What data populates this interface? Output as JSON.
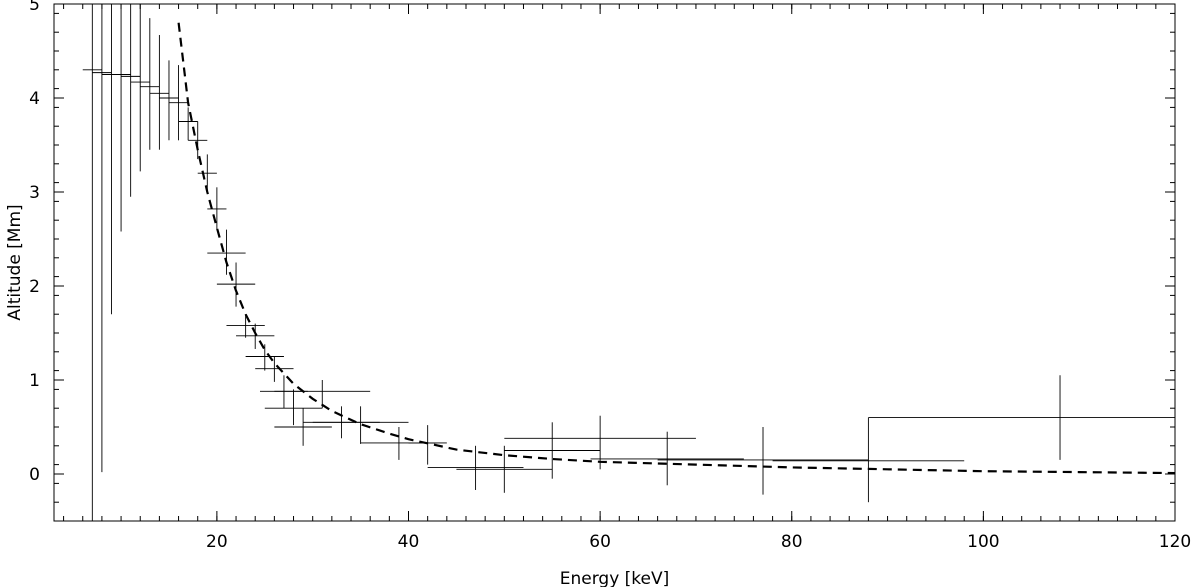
{
  "chart_data": {
    "type": "scatter",
    "title": "",
    "xlabel": "Energy [keV]",
    "ylabel": "Altitude [Mm]",
    "xlim": [
      3,
      120
    ],
    "ylim": [
      -0.5,
      5
    ],
    "xticks": [
      20,
      40,
      60,
      80,
      100,
      120
    ],
    "yticks": [
      0,
      1,
      2,
      3,
      4,
      5
    ],
    "x_minor_step": 2,
    "y_minor_step": 0.2,
    "grid": false,
    "legend": "none",
    "series": [
      {
        "style": "error-bars",
        "color": "#000000",
        "points": [
          {
            "x": 7.0,
            "xerr": 1.0,
            "y": 4.3,
            "ylo": -0.5,
            "yhi": 5.0
          },
          {
            "x": 8.0,
            "xerr": 1.0,
            "y": 4.27,
            "ylo": 0.02,
            "yhi": 5.0
          },
          {
            "x": 9.0,
            "xerr": 1.0,
            "y": 4.25,
            "ylo": 1.7,
            "yhi": 5.0
          },
          {
            "x": 10.0,
            "xerr": 1.0,
            "y": 4.25,
            "ylo": 2.58,
            "yhi": 5.0
          },
          {
            "x": 11.0,
            "xerr": 1.0,
            "y": 4.23,
            "ylo": 2.95,
            "yhi": 5.0
          },
          {
            "x": 12.0,
            "xerr": 1.0,
            "y": 4.17,
            "ylo": 3.22,
            "yhi": 5.0
          },
          {
            "x": 13.0,
            "xerr": 1.0,
            "y": 4.12,
            "ylo": 3.45,
            "yhi": 4.85
          },
          {
            "x": 14.0,
            "xerr": 1.0,
            "y": 4.05,
            "ylo": 3.45,
            "yhi": 4.67
          },
          {
            "x": 15.0,
            "xerr": 1.0,
            "y": 4.0,
            "ylo": 3.55,
            "yhi": 4.4
          },
          {
            "x": 16.0,
            "xerr": 1.0,
            "y": 3.95,
            "ylo": 3.55,
            "yhi": 4.35
          },
          {
            "x": 17.0,
            "xerr": 1.0,
            "y": 3.75,
            "ylo": 3.55,
            "yhi": 3.9
          },
          {
            "x": 18.0,
            "xerr": 1.0,
            "y": 3.55,
            "ylo": 3.35,
            "yhi": 3.75
          },
          {
            "x": 19.0,
            "xerr": 1.0,
            "y": 3.2,
            "ylo": 3.0,
            "yhi": 3.4
          },
          {
            "x": 20.0,
            "xerr": 1.0,
            "y": 2.82,
            "ylo": 2.6,
            "yhi": 3.05
          },
          {
            "x": 21.0,
            "xerr": 2.0,
            "y": 2.35,
            "ylo": 2.12,
            "yhi": 2.6
          },
          {
            "x": 22.0,
            "xerr": 2.0,
            "y": 2.02,
            "ylo": 1.78,
            "yhi": 2.25
          },
          {
            "x": 23.0,
            "xerr": 2.0,
            "y": 1.58,
            "ylo": 1.45,
            "yhi": 1.7
          },
          {
            "x": 24.0,
            "xerr": 2.0,
            "y": 1.47,
            "ylo": 1.33,
            "yhi": 1.6
          },
          {
            "x": 25.0,
            "xerr": 2.0,
            "y": 1.25,
            "ylo": 1.1,
            "yhi": 1.38
          },
          {
            "x": 26.0,
            "xerr": 2.0,
            "y": 1.12,
            "ylo": 0.98,
            "yhi": 1.25
          },
          {
            "x": 27.0,
            "xerr": 2.5,
            "y": 0.88,
            "ylo": 0.7,
            "yhi": 1.05
          },
          {
            "x": 28.0,
            "xerr": 3.0,
            "y": 0.7,
            "ylo": 0.52,
            "yhi": 0.9
          },
          {
            "x": 29.0,
            "xerr": 3.0,
            "y": 0.5,
            "ylo": 0.3,
            "yhi": 0.7
          },
          {
            "x": 31.0,
            "xerr": 5.0,
            "y": 0.88,
            "ylo": 0.7,
            "yhi": 1.0
          },
          {
            "x": 33.0,
            "xerr": 4.0,
            "y": 0.55,
            "ylo": 0.38,
            "yhi": 0.72
          },
          {
            "x": 35.0,
            "xerr": 5.0,
            "y": 0.55,
            "ylo": 0.32,
            "yhi": 0.72
          },
          {
            "x": 39.0,
            "xerr": 4.0,
            "y": 0.33,
            "ylo": 0.15,
            "yhi": 0.5
          },
          {
            "x": 42.0,
            "xerr": 2.0,
            "y": 0.33,
            "ylo": 0.1,
            "yhi": 0.52
          },
          {
            "x": 47.0,
            "xerr": 5.0,
            "y": 0.07,
            "ylo": -0.17,
            "yhi": 0.3
          },
          {
            "x": 50.0,
            "xerr": 5.0,
            "y": 0.05,
            "ylo": -0.2,
            "yhi": 0.3
          },
          {
            "x": 55.0,
            "xerr": 5.0,
            "y": 0.25,
            "ylo": -0.05,
            "yhi": 0.55
          },
          {
            "x": 60.0,
            "xerr": 10.0,
            "y": 0.38,
            "ylo": 0.05,
            "yhi": 0.62
          },
          {
            "x": 67.0,
            "xerr": 8.0,
            "y": 0.16,
            "ylo": -0.12,
            "yhi": 0.45
          },
          {
            "x": 77.0,
            "xerr": 11.0,
            "y": 0.15,
            "ylo": -0.22,
            "yhi": 0.5
          },
          {
            "x": 88.0,
            "xerr": 10.0,
            "y": 0.14,
            "ylo": -0.3,
            "yhi": 0.6
          },
          {
            "x": 108.0,
            "xerr": 20.0,
            "y": 0.6,
            "ylo": 0.15,
            "yhi": 1.05
          }
        ]
      },
      {
        "style": "dashed-line",
        "color": "#000000",
        "x": [
          16,
          17,
          18,
          19,
          20,
          21,
          22,
          23,
          24,
          25,
          26,
          28,
          30,
          32,
          35,
          38,
          40,
          45,
          50,
          55,
          60,
          70,
          80,
          90,
          100,
          110,
          120
        ],
        "y": [
          4.8,
          3.95,
          3.45,
          3.0,
          2.62,
          2.25,
          1.95,
          1.7,
          1.5,
          1.32,
          1.18,
          0.96,
          0.8,
          0.67,
          0.53,
          0.43,
          0.37,
          0.26,
          0.2,
          0.16,
          0.13,
          0.1,
          0.07,
          0.05,
          0.03,
          0.02,
          0.01
        ]
      }
    ]
  }
}
